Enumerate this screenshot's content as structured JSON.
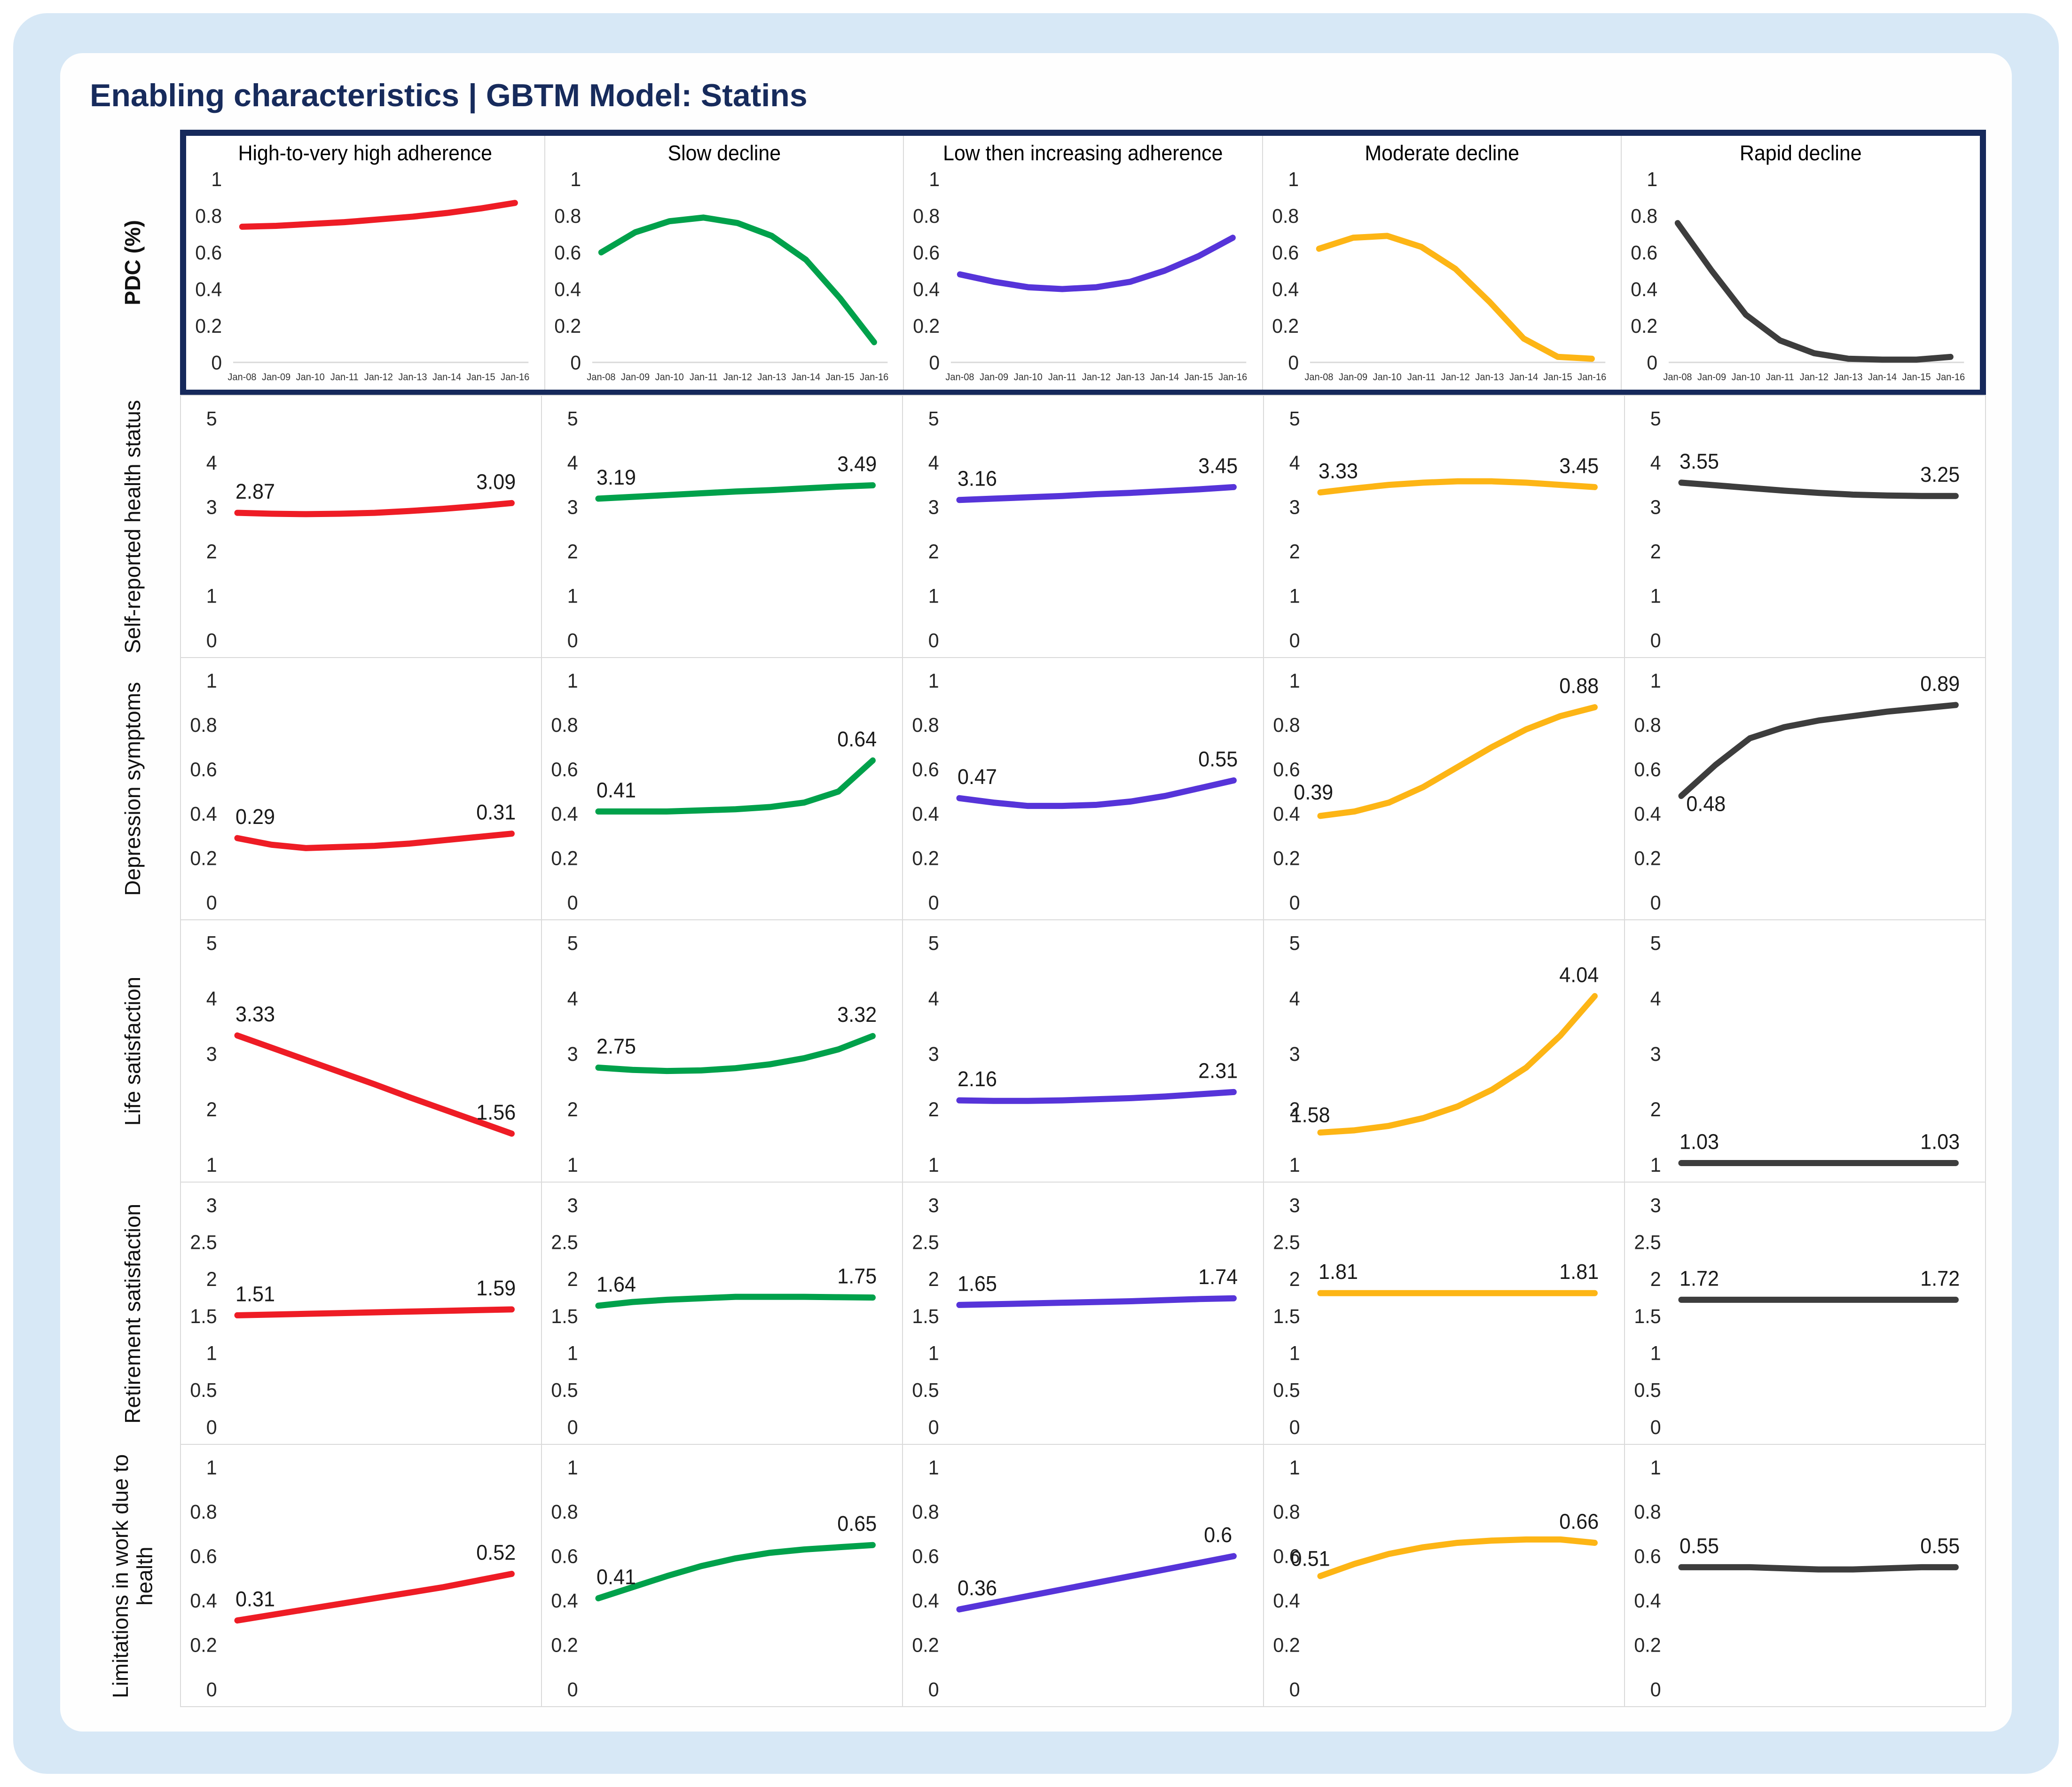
{
  "title": "Enabling characteristics | GBTM Model: Statins",
  "colors": {
    "navy": "#172B5C",
    "frame_blue": "#D7E8F6",
    "grid_border": "#DADADA",
    "axis_text": "#262626",
    "annotation_text": "#1a1a1a",
    "series": [
      "#EE1C25",
      "#00A14B",
      "#5634D9",
      "#FDB515",
      "#3D3D3D"
    ]
  },
  "columns": [
    "High-to-very high adherence",
    "Slow decline",
    "Low then increasing adherence",
    "Moderate decline",
    "Rapid decline"
  ],
  "x_labels": [
    "Jan-08",
    "Jan-09",
    "Jan-10",
    "Jan-11",
    "Jan-12",
    "Jan-13",
    "Jan-14",
    "Jan-15",
    "Jan-16"
  ],
  "chart_data": {
    "type": "line",
    "x": [
      "Jan-08",
      "Jan-09",
      "Jan-10",
      "Jan-11",
      "Jan-12",
      "Jan-13",
      "Jan-14",
      "Jan-15",
      "Jan-16"
    ],
    "legend_position": "none",
    "grid": false,
    "rows": [
      {
        "label": "PDC (%)",
        "bold": true,
        "ylim": [
          0,
          1
        ],
        "yticks": [
          1,
          0.8,
          0.6,
          0.4,
          0.2,
          0
        ],
        "show_titles": true,
        "show_xlabels": true,
        "pdc_box": true,
        "series": [
          {
            "name": "High-to-very high adherence",
            "values": [
              0.74,
              0.745,
              0.755,
              0.765,
              0.78,
              0.795,
              0.815,
              0.84,
              0.87
            ]
          },
          {
            "name": "Slow decline",
            "values": [
              0.6,
              0.71,
              0.77,
              0.79,
              0.76,
              0.69,
              0.56,
              0.35,
              0.11
            ]
          },
          {
            "name": "Low then increasing adherence",
            "values": [
              0.48,
              0.44,
              0.41,
              0.4,
              0.41,
              0.44,
              0.5,
              0.58,
              0.68
            ]
          },
          {
            "name": "Moderate decline",
            "values": [
              0.62,
              0.68,
              0.69,
              0.63,
              0.51,
              0.33,
              0.13,
              0.03,
              0.02
            ]
          },
          {
            "name": "Rapid decline",
            "values": [
              0.76,
              0.5,
              0.26,
              0.12,
              0.05,
              0.02,
              0.015,
              0.015,
              0.03
            ]
          }
        ]
      },
      {
        "label": "Self-reported health status",
        "bold": false,
        "ylim": [
          0,
          5
        ],
        "yticks": [
          5,
          4,
          3,
          2,
          1,
          0
        ],
        "show_titles": false,
        "show_xlabels": false,
        "pdc_box": false,
        "series": [
          {
            "name": "High-to-very high adherence",
            "values": [
              2.87,
              2.85,
              2.84,
              2.85,
              2.87,
              2.91,
              2.96,
              3.02,
              3.09
            ],
            "start": "2.87",
            "end": "3.09"
          },
          {
            "name": "Slow decline",
            "values": [
              3.19,
              3.23,
              3.27,
              3.31,
              3.35,
              3.38,
              3.42,
              3.46,
              3.49
            ],
            "start": "3.19",
            "end": "3.49"
          },
          {
            "name": "Low then increasing adherence",
            "values": [
              3.16,
              3.19,
              3.22,
              3.25,
              3.29,
              3.32,
              3.36,
              3.4,
              3.45
            ],
            "start": "3.16",
            "end": "3.45"
          },
          {
            "name": "Moderate decline",
            "values": [
              3.33,
              3.42,
              3.5,
              3.55,
              3.58,
              3.58,
              3.55,
              3.5,
              3.45
            ],
            "start": "3.33",
            "end": "3.45"
          },
          {
            "name": "Rapid decline",
            "values": [
              3.55,
              3.49,
              3.43,
              3.37,
              3.32,
              3.28,
              3.26,
              3.25,
              3.25
            ],
            "start": "3.55",
            "end": "3.25"
          }
        ]
      },
      {
        "label": "Depression symptoms",
        "bold": false,
        "ylim": [
          0,
          1
        ],
        "yticks": [
          1,
          0.8,
          0.6,
          0.4,
          0.2,
          0
        ],
        "show_titles": false,
        "show_xlabels": false,
        "pdc_box": false,
        "series": [
          {
            "name": "High-to-very high adherence",
            "values": [
              0.29,
              0.26,
              0.245,
              0.25,
              0.255,
              0.265,
              0.28,
              0.295,
              0.31
            ],
            "start": "0.29",
            "end": "0.31"
          },
          {
            "name": "Slow decline",
            "values": [
              0.41,
              0.41,
              0.41,
              0.415,
              0.42,
              0.43,
              0.45,
              0.5,
              0.64
            ],
            "start": "0.41",
            "end": "0.64"
          },
          {
            "name": "Low then increasing adherence",
            "values": [
              0.47,
              0.45,
              0.435,
              0.435,
              0.44,
              0.455,
              0.48,
              0.515,
              0.55
            ],
            "start": "0.47",
            "end": "0.55"
          },
          {
            "name": "Moderate decline",
            "values": [
              0.39,
              0.41,
              0.45,
              0.52,
              0.61,
              0.7,
              0.78,
              0.84,
              0.88
            ],
            "start": "0.39",
            "end": "0.88",
            "sdx": -55,
            "sdy": -5
          },
          {
            "name": "Rapid decline",
            "values": [
              0.48,
              0.62,
              0.74,
              0.79,
              0.82,
              0.84,
              0.86,
              0.875,
              0.89
            ],
            "start": "0.48",
            "end": "0.89",
            "sdx": 15,
            "sdy": 62
          }
        ]
      },
      {
        "label": "Life satisfaction",
        "bold": false,
        "ylim": [
          1,
          5
        ],
        "yticks": [
          5,
          4,
          3,
          2,
          1
        ],
        "show_titles": false,
        "show_xlabels": false,
        "pdc_box": false,
        "series": [
          {
            "name": "High-to-very high adherence",
            "values": [
              3.33,
              3.11,
              2.89,
              2.67,
              2.45,
              2.22,
              2.0,
              1.78,
              1.56
            ],
            "start": "3.33",
            "end": "1.56"
          },
          {
            "name": "Slow decline",
            "values": [
              2.75,
              2.71,
              2.69,
              2.7,
              2.74,
              2.81,
              2.92,
              3.08,
              3.32
            ],
            "start": "2.75",
            "end": "3.32"
          },
          {
            "name": "Low then increasing adherence",
            "values": [
              2.16,
              2.15,
              2.15,
              2.16,
              2.18,
              2.2,
              2.23,
              2.27,
              2.31
            ],
            "start": "2.16",
            "end": "2.31"
          },
          {
            "name": "Moderate decline",
            "values": [
              1.58,
              1.62,
              1.7,
              1.84,
              2.05,
              2.35,
              2.75,
              3.33,
              4.04
            ],
            "start": "1.58",
            "end": "4.04",
            "sdx": -62,
            "sdy": 8
          },
          {
            "name": "Rapid decline",
            "values": [
              1.03,
              1.03,
              1.03,
              1.03,
              1.03,
              1.03,
              1.03,
              1.03,
              1.03
            ],
            "start": "1.03",
            "end": "1.03"
          }
        ]
      },
      {
        "label": "Retirement satisfaction",
        "bold": false,
        "ylim": [
          0,
          3
        ],
        "yticks": [
          3,
          2.5,
          2,
          1.5,
          1,
          0.5,
          0
        ],
        "show_titles": false,
        "show_xlabels": false,
        "pdc_box": false,
        "series": [
          {
            "name": "High-to-very high adherence",
            "values": [
              1.51,
              1.52,
              1.53,
              1.54,
              1.55,
              1.56,
              1.57,
              1.58,
              1.59
            ],
            "start": "1.51",
            "end": "1.59"
          },
          {
            "name": "Slow decline",
            "values": [
              1.64,
              1.69,
              1.72,
              1.74,
              1.76,
              1.76,
              1.76,
              1.755,
              1.75
            ],
            "start": "1.64",
            "end": "1.75"
          },
          {
            "name": "Low then increasing adherence",
            "values": [
              1.65,
              1.66,
              1.67,
              1.68,
              1.69,
              1.7,
              1.715,
              1.73,
              1.74
            ],
            "start": "1.65",
            "end": "1.74"
          },
          {
            "name": "Moderate decline",
            "values": [
              1.81,
              1.81,
              1.81,
              1.81,
              1.81,
              1.81,
              1.81,
              1.81,
              1.81
            ],
            "start": "1.81",
            "end": "1.81"
          },
          {
            "name": "Rapid decline",
            "values": [
              1.72,
              1.72,
              1.72,
              1.72,
              1.72,
              1.72,
              1.72,
              1.72,
              1.72
            ],
            "start": "1.72",
            "end": "1.72"
          }
        ]
      },
      {
        "label": "Limitations in work due to health",
        "bold": false,
        "ylim": [
          0,
          1
        ],
        "yticks": [
          1,
          0.8,
          0.6,
          0.4,
          0.2,
          0
        ],
        "show_titles": false,
        "show_xlabels": false,
        "pdc_box": false,
        "series": [
          {
            "name": "High-to-very high adherence",
            "values": [
              0.31,
              0.335,
              0.36,
              0.385,
              0.41,
              0.435,
              0.46,
              0.49,
              0.52
            ],
            "start": "0.31",
            "end": "0.52"
          },
          {
            "name": "Slow decline",
            "values": [
              0.41,
              0.46,
              0.51,
              0.555,
              0.59,
              0.615,
              0.63,
              0.64,
              0.65
            ],
            "start": "0.41",
            "end": "0.65"
          },
          {
            "name": "Low then increasing adherence",
            "values": [
              0.36,
              0.39,
              0.42,
              0.45,
              0.48,
              0.51,
              0.54,
              0.57,
              0.6
            ],
            "start": "0.36",
            "end": "0.6"
          },
          {
            "name": "Moderate decline",
            "values": [
              0.51,
              0.565,
              0.61,
              0.64,
              0.66,
              0.67,
              0.675,
              0.675,
              0.66
            ],
            "start": "0.51",
            "end": "0.66",
            "sdx": -62,
            "sdy": 8
          },
          {
            "name": "Rapid decline",
            "values": [
              0.55,
              0.55,
              0.55,
              0.545,
              0.54,
              0.54,
              0.545,
              0.55,
              0.55
            ],
            "start": "0.55",
            "end": "0.55"
          }
        ]
      }
    ]
  }
}
